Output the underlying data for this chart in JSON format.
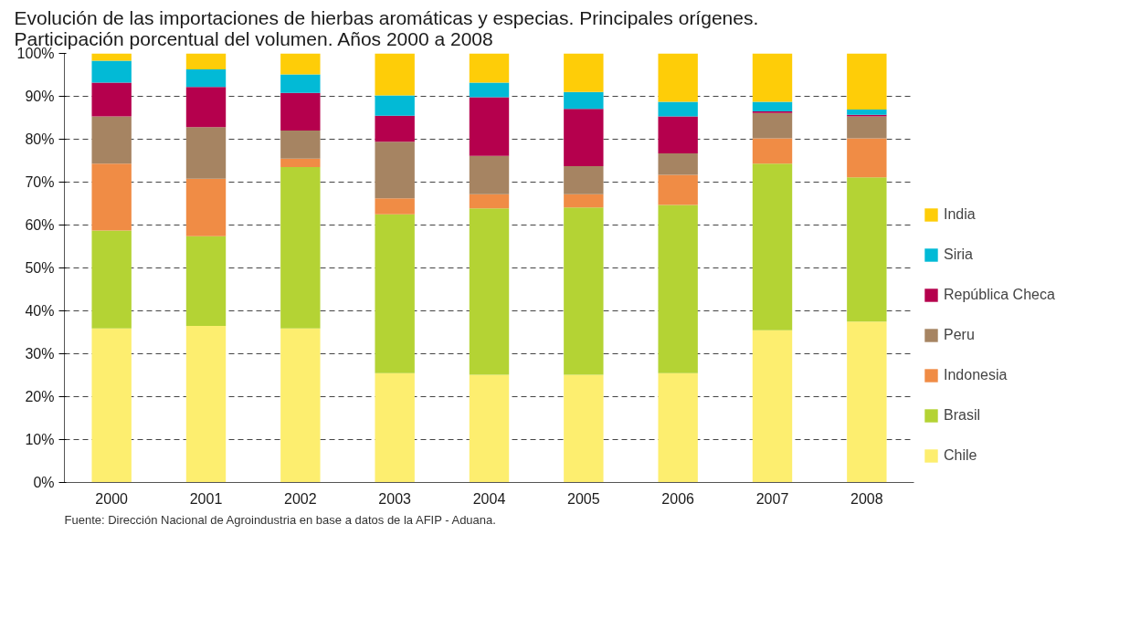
{
  "chart_data": {
    "type": "bar",
    "stacked": true,
    "title": "Evolución de las importaciones de hierbas aromáticas y especias. Principales orígenes.\nParticipación porcentual del volumen. Años 2000 a 2008",
    "categories": [
      "2000",
      "2001",
      "2002",
      "2003",
      "2004",
      "2005",
      "2006",
      "2007",
      "2008"
    ],
    "series": [
      {
        "name": "Chile",
        "color": "#fdee6f",
        "values": [
          35.9,
          36.5,
          35.9,
          25.5,
          25.1,
          25.1,
          25.5,
          35.5,
          37.5
        ]
      },
      {
        "name": "Brasil",
        "color": "#b4d334",
        "values": [
          22.8,
          20.9,
          37.6,
          37.0,
          38.8,
          39.0,
          39.2,
          38.8,
          33.6
        ]
      },
      {
        "name": "Indonesia",
        "color": "#f08c45",
        "values": [
          15.6,
          13.4,
          2.0,
          3.7,
          3.3,
          3.1,
          7.0,
          5.9,
          9.1
        ]
      },
      {
        "name": "Peru",
        "color": "#a68462",
        "values": [
          11.0,
          12.0,
          6.5,
          13.2,
          8.9,
          6.5,
          5.0,
          5.9,
          5.1
        ]
      },
      {
        "name": "República Checa",
        "color": "#b5004d",
        "values": [
          7.9,
          9.4,
          8.8,
          6.1,
          13.7,
          13.4,
          8.6,
          0.4,
          0.4
        ]
      },
      {
        "name": "Siria",
        "color": "#02bad6",
        "values": [
          5.1,
          4.1,
          4.3,
          4.7,
          3.4,
          3.9,
          3.4,
          2.2,
          1.2
        ]
      },
      {
        "name": "India",
        "color": "#fecd08",
        "values": [
          1.7,
          3.7,
          4.9,
          9.8,
          6.8,
          9.0,
          11.3,
          11.3,
          13.1
        ]
      }
    ],
    "ylim": [
      0,
      100
    ],
    "yticks": [
      {
        "value": 0,
        "label": "0%"
      },
      {
        "value": 10,
        "label": "10%"
      },
      {
        "value": 20,
        "label": "20%"
      },
      {
        "value": 30,
        "label": "30%"
      },
      {
        "value": 40,
        "label": "40%"
      },
      {
        "value": 50,
        "label": "50%"
      },
      {
        "value": 60,
        "label": "60%"
      },
      {
        "value": 70,
        "label": "70%"
      },
      {
        "value": 80,
        "label": "80%"
      },
      {
        "value": 90,
        "label": "90%"
      },
      {
        "value": 100,
        "label": "100%"
      }
    ],
    "grid": "y",
    "legend": "right",
    "annotations": [
      "Fuente: Dirección Nacional de Agroindustria en base a datos de la AFIP - Aduana."
    ]
  }
}
